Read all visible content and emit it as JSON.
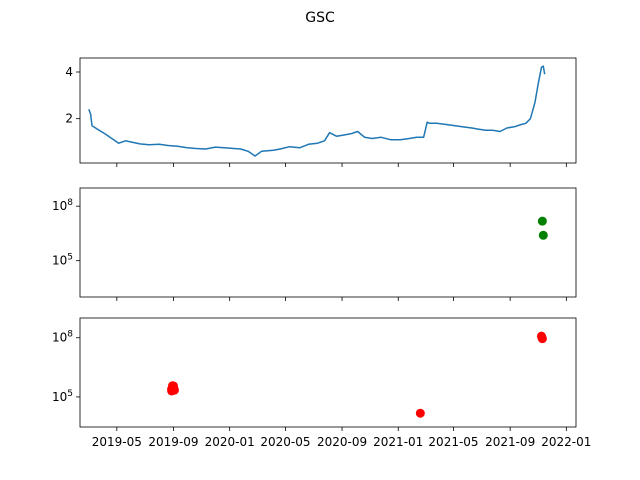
{
  "chart_data": {
    "title": "GSC",
    "type": "multi-panel",
    "x_date_range": [
      "2019-02-10",
      "2022-01-22"
    ],
    "shared_x_ticks": [
      "2019-05",
      "2019-09",
      "2020-01",
      "2020-05",
      "2020-09",
      "2021-01",
      "2021-05",
      "2021-09",
      "2022-01"
    ],
    "panels": [
      {
        "type": "line",
        "color": "#1f77b4",
        "yscale": "linear",
        "ylim": [
          0.1,
          4.6
        ],
        "y_ticks": [
          2,
          4
        ],
        "y_tick_labels": [
          "2",
          "4"
        ],
        "series": [
          {
            "x": [
              "2019-03-01",
              "2019-03-05",
              "2019-03-08",
              "2019-03-20",
              "2019-04-05",
              "2019-04-20",
              "2019-05-05",
              "2019-05-20",
              "2019-06-01",
              "2019-06-20",
              "2019-07-10",
              "2019-08-01",
              "2019-08-20",
              "2019-09-10",
              "2019-10-01",
              "2019-10-20",
              "2019-11-10",
              "2019-12-01",
              "2019-12-20",
              "2020-01-10",
              "2020-01-25",
              "2020-02-10",
              "2020-02-25",
              "2020-03-10",
              "2020-03-20",
              "2020-04-05",
              "2020-04-20",
              "2020-05-10",
              "2020-06-01",
              "2020-06-20",
              "2020-07-10",
              "2020-07-25",
              "2020-08-05",
              "2020-08-20",
              "2020-09-05",
              "2020-09-20",
              "2020-10-05",
              "2020-10-20",
              "2020-11-05",
              "2020-11-25",
              "2020-12-15",
              "2021-01-05",
              "2021-01-25",
              "2021-02-10",
              "2021-02-25",
              "2021-03-05",
              "2021-03-10",
              "2021-03-25",
              "2021-04-15",
              "2021-05-05",
              "2021-05-20",
              "2021-06-10",
              "2021-06-25",
              "2021-07-10",
              "2021-07-25",
              "2021-08-10",
              "2021-08-25",
              "2021-09-10",
              "2021-09-25",
              "2021-10-05",
              "2021-10-15",
              "2021-10-25",
              "2021-11-01",
              "2021-11-08",
              "2021-11-12",
              "2021-11-15"
            ],
            "y": [
              2.4,
              2.2,
              1.7,
              1.55,
              1.35,
              1.15,
              0.95,
              1.05,
              1.0,
              0.92,
              0.88,
              0.9,
              0.85,
              0.82,
              0.75,
              0.72,
              0.7,
              0.78,
              0.75,
              0.72,
              0.7,
              0.6,
              0.4,
              0.6,
              0.62,
              0.65,
              0.7,
              0.8,
              0.75,
              0.9,
              0.95,
              1.05,
              1.4,
              1.25,
              1.3,
              1.35,
              1.45,
              1.2,
              1.15,
              1.2,
              1.1,
              1.1,
              1.15,
              1.2,
              1.2,
              1.85,
              1.8,
              1.8,
              1.75,
              1.7,
              1.65,
              1.6,
              1.55,
              1.5,
              1.5,
              1.45,
              1.6,
              1.65,
              1.75,
              1.8,
              2.0,
              2.7,
              3.5,
              4.2,
              4.25,
              3.9
            ]
          }
        ]
      },
      {
        "type": "scatter",
        "color": "#008000",
        "yscale": "log",
        "ylim": [
          1000,
          1000000000
        ],
        "y_ticks": [
          100000,
          100000000
        ],
        "y_tick_labels": [
          "10^5",
          "10^8"
        ],
        "series": [
          {
            "x": [
              "2021-11-10",
              "2021-11-12"
            ],
            "y": [
              15000000,
              2500000
            ]
          }
        ]
      },
      {
        "type": "scatter",
        "color": "#ff0000",
        "yscale": "log",
        "ylim": [
          3000,
          1000000000
        ],
        "y_ticks": [
          100000,
          100000000
        ],
        "y_tick_labels": [
          "10^5",
          "10^8"
        ],
        "series": [
          {
            "x": [
              "2019-08-28",
              "2019-08-30",
              "2019-09-01",
              "2019-09-03",
              "2019-08-28",
              "2019-09-02",
              "2019-08-30",
              "2021-02-18",
              "2021-11-08",
              "2021-11-10",
              "2021-11-09"
            ],
            "y": [
              200000,
              270000,
              360000,
              220000,
              250000,
              260000,
              370000,
              15000,
              120000000,
              90000000,
              100000000
            ]
          }
        ]
      }
    ]
  }
}
